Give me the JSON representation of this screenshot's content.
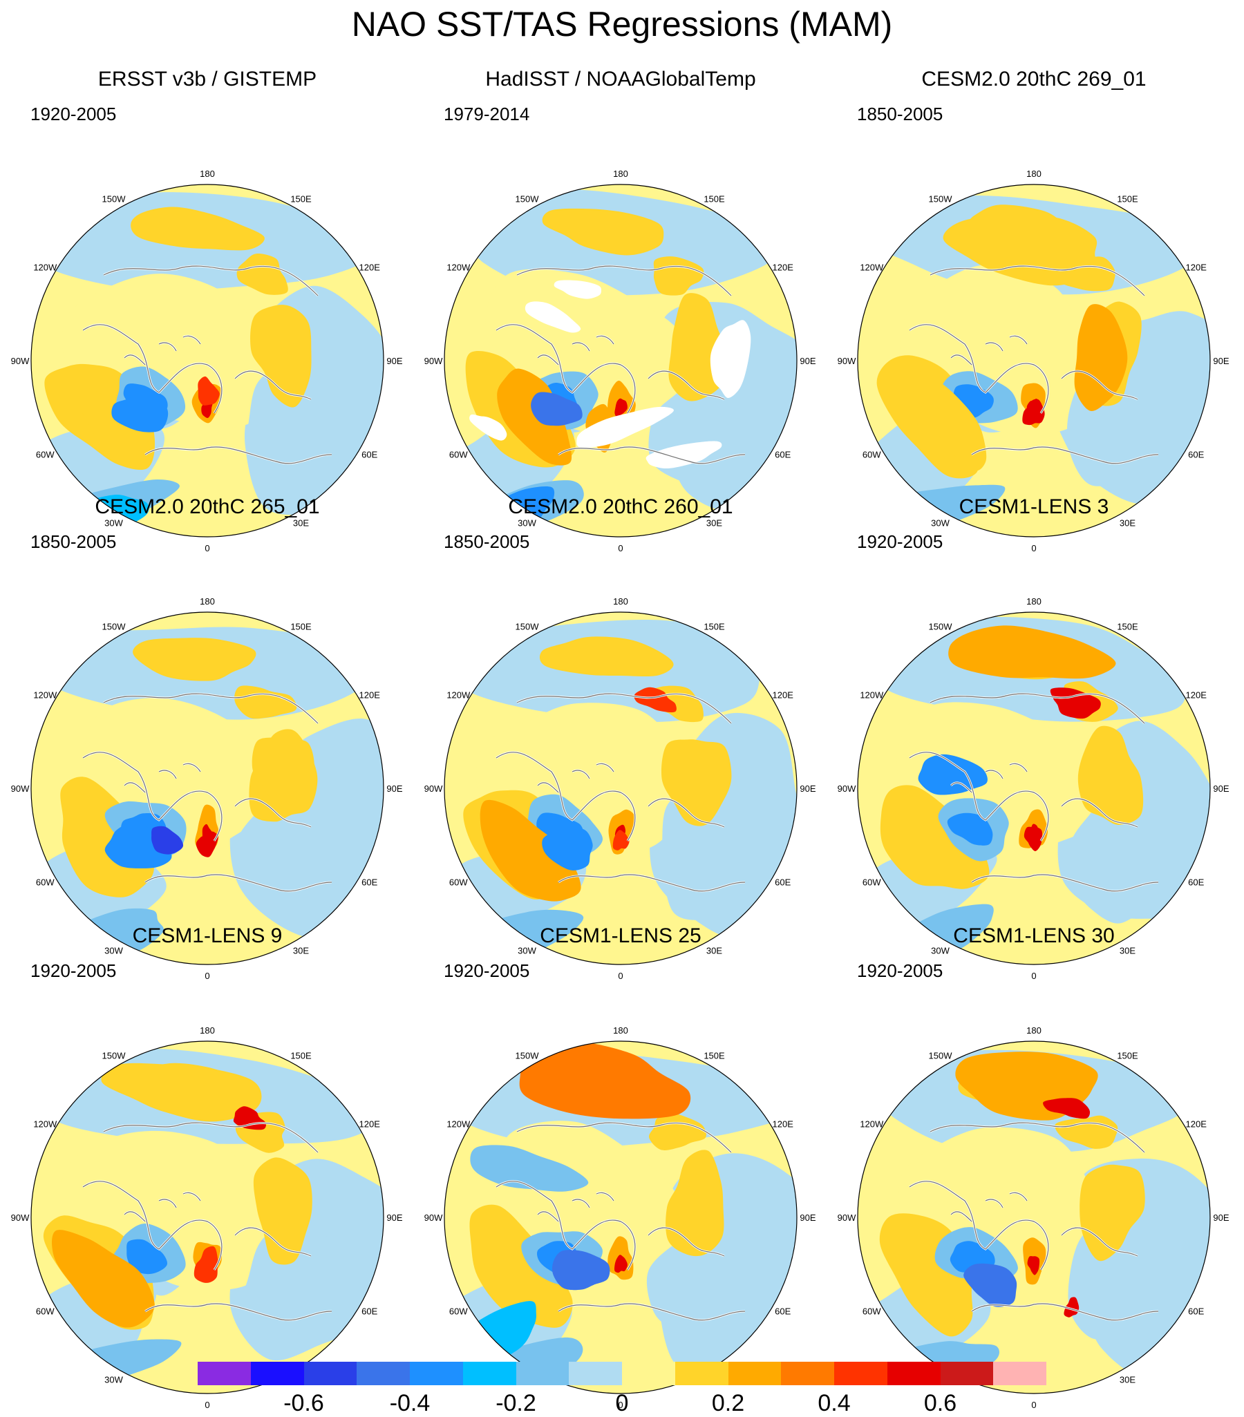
{
  "title": "NAO SST/TAS Regressions (MAM)",
  "lon_labels": [
    "180",
    "150E",
    "120E",
    "90E",
    "60E",
    "30E",
    "0",
    "30W",
    "60W",
    "90W",
    "120W",
    "150W"
  ],
  "panels": [
    {
      "title": "ERSST v3b / GISTEMP",
      "period": "1920-2005",
      "missing_data": false
    },
    {
      "title": "HadISST / NOAAGlobalTemp",
      "period": "1979-2014",
      "missing_data": true
    },
    {
      "title": "CESM2.0 20thC 269_01",
      "period": "1850-2005",
      "missing_data": false
    },
    {
      "title": "CESM2.0 20thC 265_01",
      "period": "1850-2005",
      "missing_data": false
    },
    {
      "title": "CESM2.0 20thC 260_01",
      "period": "1850-2005",
      "missing_data": false
    },
    {
      "title": "CESM1-LENS 3",
      "period": "1920-2005",
      "missing_data": false
    },
    {
      "title": "CESM1-LENS 9",
      "period": "1920-2005",
      "missing_data": false
    },
    {
      "title": "CESM1-LENS 25",
      "period": "1920-2005",
      "missing_data": false
    },
    {
      "title": "CESM1-LENS 30",
      "period": "1920-2005",
      "missing_data": false
    }
  ],
  "colorbar": {
    "colors": [
      "#8a2be2",
      "#1a0fff",
      "#2a3fe8",
      "#3a74ea",
      "#1e90ff",
      "#00bfff",
      "#78c2ee",
      "#b0dcf2",
      "#fff68f",
      "#ffd42a",
      "#ffaa00",
      "#ff7a00",
      "#ff3300",
      "#e60000",
      "#cc1a1a",
      "#ffb3b3"
    ],
    "tick_labels": [
      "-0.6",
      "-0.4",
      "-0.2",
      "0",
      "0.2",
      "0.4",
      "0.6"
    ]
  }
}
